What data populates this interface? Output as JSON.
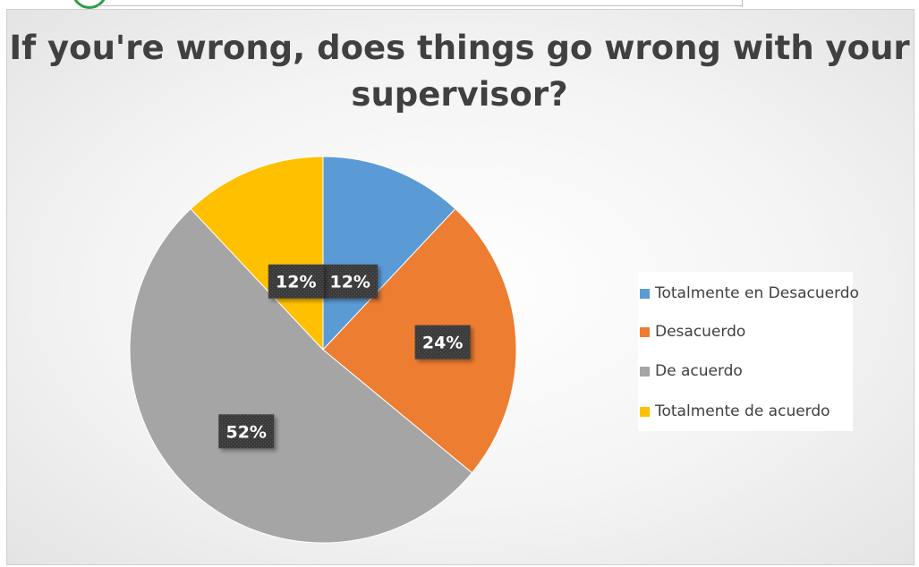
{
  "chart_data": {
    "type": "pie",
    "title": "If you're wrong, does things go wrong with your supervisor?",
    "categories": [
      "Totalmente en Desacuerdo",
      "Desacuerdo",
      "De acuerdo",
      "Totalmente de acuerdo"
    ],
    "values": [
      12,
      24,
      52,
      12
    ],
    "data_labels": [
      "12%",
      "24%",
      "52%",
      "12%"
    ],
    "colors": [
      "#5b9bd5",
      "#ed7d31",
      "#a5a5a5",
      "#ffc000"
    ],
    "legend_position": "right"
  },
  "legend": {
    "items": [
      {
        "label": "Totalmente en Desacuerdo",
        "color": "#5b9bd5"
      },
      {
        "label": "Desacuerdo",
        "color": "#ed7d31"
      },
      {
        "label": "De acuerdo",
        "color": "#a5a5a5"
      },
      {
        "label": "Totalmente de acuerdo",
        "color": "#ffc000"
      }
    ]
  }
}
